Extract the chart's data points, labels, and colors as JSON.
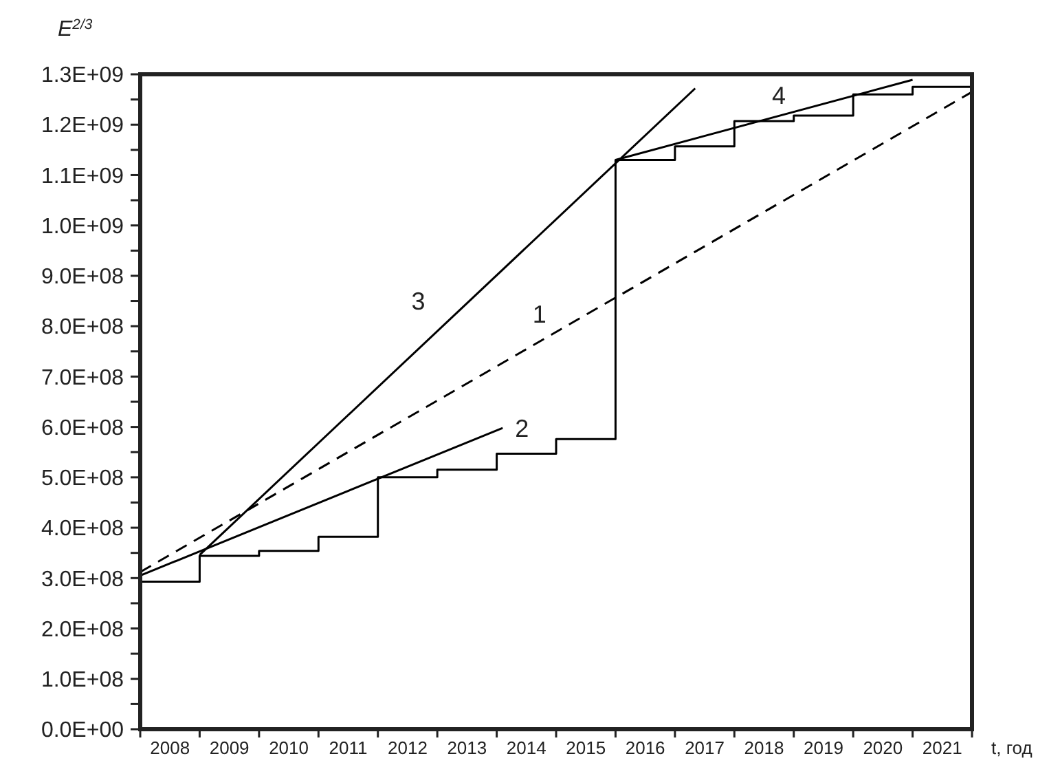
{
  "chart_data": {
    "type": "line",
    "xlabel": "t, год",
    "ylabel": "E$^{2/3}$",
    "xlim": [
      2008,
      2022
    ],
    "ylim": [
      0,
      1300000000
    ],
    "xticks": [
      {
        "value": 2008,
        "label": null
      },
      {
        "value": 2008.5,
        "label": "2008"
      },
      {
        "value": 2009,
        "label": null
      },
      {
        "value": 2009.5,
        "label": "2009"
      },
      {
        "value": 2010,
        "label": null
      },
      {
        "value": 2010.5,
        "label": "2010"
      },
      {
        "value": 2011,
        "label": null
      },
      {
        "value": 2011.5,
        "label": "2011"
      },
      {
        "value": 2012,
        "label": null
      },
      {
        "value": 2012.5,
        "label": "2012"
      },
      {
        "value": 2013,
        "label": null
      },
      {
        "value": 2013.5,
        "label": "2013"
      },
      {
        "value": 2014,
        "label": null
      },
      {
        "value": 2014.5,
        "label": "2014"
      },
      {
        "value": 2015,
        "label": null
      },
      {
        "value": 2015.5,
        "label": "2015"
      },
      {
        "value": 2016,
        "label": null
      },
      {
        "value": 2016.5,
        "label": "2016"
      },
      {
        "value": 2017,
        "label": null
      },
      {
        "value": 2017.5,
        "label": "2017"
      },
      {
        "value": 2018,
        "label": null
      },
      {
        "value": 2018.5,
        "label": "2018"
      },
      {
        "value": 2019,
        "label": null
      },
      {
        "value": 2019.5,
        "label": "2019"
      },
      {
        "value": 2020,
        "label": null
      },
      {
        "value": 2020.5,
        "label": "2020"
      },
      {
        "value": 2021,
        "label": null
      },
      {
        "value": 2021.5,
        "label": "2021"
      },
      {
        "value": 2022,
        "label": null
      }
    ],
    "yticks": [
      {
        "value": 0,
        "label": "0.0E+00"
      },
      {
        "value": 50000000,
        "label": null
      },
      {
        "value": 100000000,
        "label": "1.0E+08"
      },
      {
        "value": 150000000,
        "label": null
      },
      {
        "value": 200000000,
        "label": "2.0E+08"
      },
      {
        "value": 250000000,
        "label": null
      },
      {
        "value": 300000000,
        "label": "3.0E+08"
      },
      {
        "value": 350000000,
        "label": null
      },
      {
        "value": 400000000,
        "label": "4.0E+08"
      },
      {
        "value": 450000000,
        "label": null
      },
      {
        "value": 500000000,
        "label": "5.0E+08"
      },
      {
        "value": 550000000,
        "label": null
      },
      {
        "value": 600000000,
        "label": "6.0E+08"
      },
      {
        "value": 650000000,
        "label": null
      },
      {
        "value": 700000000,
        "label": "7.0E+08"
      },
      {
        "value": 750000000,
        "label": null
      },
      {
        "value": 800000000,
        "label": "8.0E+08"
      },
      {
        "value": 850000000,
        "label": null
      },
      {
        "value": 900000000,
        "label": "9.0E+08"
      },
      {
        "value": 950000000,
        "label": null
      },
      {
        "value": 1000000000,
        "label": "1.0E+09"
      },
      {
        "value": 1050000000,
        "label": null
      },
      {
        "value": 1100000000,
        "label": "1.1E+09"
      },
      {
        "value": 1150000000,
        "label": null
      },
      {
        "value": 1200000000,
        "label": "1.2E+09"
      },
      {
        "value": 1250000000,
        "label": null
      },
      {
        "value": 1300000000,
        "label": "1.3E+09"
      }
    ],
    "series": [
      {
        "type": "step",
        "color": "#000000",
        "x": [
          2008,
          2009,
          2010,
          2011,
          2012,
          2013,
          2014,
          2015,
          2016,
          2017,
          2018,
          2019,
          2020,
          2021,
          2022
        ],
        "values": [
          293000000,
          344000000,
          354000000,
          382000000,
          500000000,
          515000000,
          547000000,
          576000000,
          1130000000,
          1157000000,
          1207000000,
          1218000000,
          1260000000,
          1275000000,
          1275000000
        ]
      },
      {
        "name": "1",
        "color": "#000000",
        "line_style": "dashed",
        "x": [
          2008,
          2022
        ],
        "values": [
          312000000,
          1265000000
        ]
      },
      {
        "name": "2",
        "color": "#000000",
        "line_style": "solid",
        "x": [
          2008,
          2014.1
        ],
        "values": [
          305000000,
          598000000
        ]
      },
      {
        "name": "3",
        "color": "#000000",
        "line_style": "solid",
        "x": [
          2009,
          2017.34
        ],
        "values": [
          346000000,
          1272000000
        ]
      },
      {
        "name": "4",
        "color": "#000000",
        "line_style": "solid",
        "x": [
          2016,
          2021
        ],
        "values": [
          1130000000,
          1289000000
        ]
      }
    ]
  }
}
